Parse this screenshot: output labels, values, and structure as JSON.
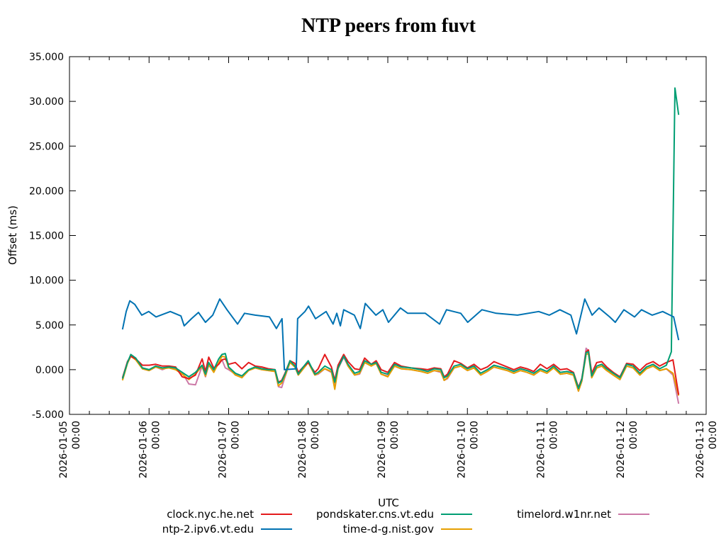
{
  "chart_data": {
    "type": "line",
    "title": "NTP peers from fuvt",
    "xlabel": "UTC",
    "ylabel": "Offset (ms)",
    "ylim": [
      -5,
      35
    ],
    "y_ticks": [
      "-5.000",
      "0.000",
      "5.000",
      "10.000",
      "15.000",
      "20.000",
      "25.000",
      "30.000",
      "35.000"
    ],
    "x_unit": "hours since 2026-01-05 00:00 UTC",
    "xlim_hours": [
      0,
      192
    ],
    "x_ticks": [
      {
        "date": "2026-01-05",
        "time": "00:00"
      },
      {
        "date": "2026-01-06",
        "time": "00:00"
      },
      {
        "date": "2026-01-07",
        "time": "00:00"
      },
      {
        "date": "2026-01-08",
        "time": "00:00"
      },
      {
        "date": "2026-01-09",
        "time": "00:00"
      },
      {
        "date": "2026-01-10",
        "time": "00:00"
      },
      {
        "date": "2026-01-11",
        "time": "00:00"
      },
      {
        "date": "2026-01-12",
        "time": "00:00"
      },
      {
        "date": "2026-01-13",
        "time": "00:00"
      }
    ],
    "grid": false,
    "legend_placement": "bottom",
    "series": [
      {
        "name": "clock.nyc.he.net",
        "color": "#e41a1c",
        "x_hours": [
          16,
          17.5,
          18.5,
          20,
          22,
          24,
          26,
          28,
          30,
          32,
          34,
          36,
          38,
          40,
          41,
          42,
          43.5,
          45,
          46,
          47,
          48,
          50,
          52,
          54,
          56,
          58,
          60,
          62,
          63,
          64,
          65,
          66.5,
          68,
          69,
          70.5,
          72,
          74,
          75,
          77,
          79,
          80,
          81,
          82.7,
          84,
          86,
          87.5,
          89,
          91,
          92.5,
          94,
          96,
          98,
          100,
          103,
          106,
          108,
          110,
          112,
          113,
          114,
          116,
          118,
          120,
          122,
          124,
          126,
          128,
          130,
          132,
          134,
          136,
          138,
          140,
          142,
          144,
          146,
          148,
          150,
          152,
          153.5,
          154.5,
          155.8,
          156.5,
          157.5,
          159,
          160.5,
          162,
          164,
          166,
          168,
          170,
          172,
          174,
          176,
          178,
          180,
          182,
          183.7
        ],
        "values": [
          -0.9,
          0.9,
          1.5,
          1.2,
          0.5,
          0.5,
          0.6,
          0.4,
          0.4,
          0.3,
          -0.8,
          -1.0,
          -0.6,
          1.2,
          -0.2,
          1.4,
          0.2,
          0.6,
          1.1,
          1.2,
          0.6,
          0.8,
          0.1,
          0.8,
          0.4,
          0.3,
          0.1,
          0.0,
          -1.4,
          -1.2,
          -0.4,
          1.0,
          0.7,
          -0.3,
          0.3,
          0.8,
          -0.3,
          0.1,
          1.7,
          0.3,
          -1.2,
          0.5,
          1.7,
          0.9,
          0.1,
          0.0,
          1.3,
          0.6,
          1.0,
          0.0,
          -0.3,
          0.8,
          0.4,
          0.2,
          0.1,
          0.0,
          0.2,
          0.1,
          -0.8,
          -0.5,
          1.0,
          0.7,
          0.2,
          0.6,
          0.0,
          0.3,
          0.9,
          0.6,
          0.3,
          0.0,
          0.3,
          0.1,
          -0.2,
          0.6,
          0.1,
          0.6,
          0.0,
          0.1,
          -0.3,
          -2.0,
          -1.0,
          2.0,
          2.2,
          -0.4,
          0.8,
          0.9,
          0.3,
          -0.3,
          -0.8,
          0.7,
          0.6,
          -0.1,
          0.6,
          0.9,
          0.4,
          0.8,
          1.1,
          -2.8
        ]
      },
      {
        "name": "ntp-2.ipv6.vt.edu",
        "color": "#0072b2",
        "x_hours": [
          16.0,
          17.1,
          18.2,
          19.7,
          21.8,
          23.9,
          26.1,
          30.4,
          33.6,
          34.6,
          36.8,
          38.9,
          41.0,
          43.2,
          45.3,
          47.5,
          50.7,
          52.8,
          56.0,
          60.3,
          62.4,
          64.1,
          64.8,
          68.4,
          68.8,
          71.0,
          72.1,
          74.2,
          77.4,
          79.5,
          80.6,
          81.7,
          82.7,
          85.9,
          87.7,
          89.2,
          92.4,
          94.5,
          96.2,
          99.8,
          102.0,
          107.3,
          111.6,
          113.7,
          118.0,
          120.1,
          124.4,
          128.7,
          135.1,
          141.5,
          144.7,
          147.9,
          151.2,
          152.9,
          155.4,
          157.6,
          159.7,
          162.9,
          164.6,
          167.2,
          170.4,
          172.5,
          175.7,
          178.9,
          181.1,
          182.2,
          183.7
        ],
        "values": [
          4.5,
          6.5,
          7.7,
          7.3,
          6.1,
          6.5,
          5.9,
          6.5,
          6.0,
          4.9,
          5.7,
          6.4,
          5.3,
          6.1,
          7.9,
          6.7,
          5.1,
          6.3,
          6.1,
          5.9,
          4.6,
          5.7,
          0.0,
          0.1,
          5.7,
          6.5,
          7.1,
          5.7,
          6.5,
          5.1,
          6.3,
          4.9,
          6.7,
          6.1,
          4.6,
          7.4,
          6.1,
          6.7,
          5.3,
          6.9,
          6.3,
          6.3,
          5.1,
          6.7,
          6.3,
          5.3,
          6.7,
          6.3,
          6.1,
          6.5,
          6.1,
          6.7,
          6.1,
          4.0,
          7.9,
          6.1,
          6.9,
          5.9,
          5.3,
          6.7,
          5.9,
          6.7,
          6.1,
          6.5,
          6.1,
          5.9,
          3.3
        ]
      },
      {
        "name": "pondskater.cns.vt.edu",
        "color": "#009e73",
        "x_hours": [
          16,
          17.5,
          18.5,
          20,
          22,
          24,
          26,
          28,
          30,
          32,
          34,
          36,
          38,
          40,
          41,
          42,
          43.5,
          45,
          46,
          47,
          48,
          50,
          52,
          54,
          56,
          58,
          60,
          62,
          63,
          64,
          65,
          66.5,
          68,
          69,
          70.5,
          72,
          74,
          75,
          77,
          79,
          80,
          81,
          82.7,
          84,
          86,
          87.5,
          89,
          91,
          92.5,
          94,
          96,
          98,
          100,
          103,
          106,
          108,
          110,
          112,
          113,
          114,
          116,
          118,
          120,
          122,
          124,
          126,
          128,
          130,
          132,
          134,
          136,
          138,
          140,
          142,
          144,
          146,
          148,
          150,
          152,
          153.5,
          154.5,
          155.8,
          156.5,
          157.5,
          159,
          160.5,
          162,
          164,
          166,
          168,
          170,
          172,
          174,
          176,
          178,
          180,
          181.5,
          182.6,
          183.7
        ],
        "values": [
          -1.0,
          0.8,
          1.7,
          1.3,
          0.2,
          0.0,
          0.4,
          0.2,
          0.3,
          0.2,
          -0.3,
          -0.8,
          -0.3,
          0.5,
          -0.5,
          0.8,
          0.0,
          1.2,
          1.7,
          1.8,
          0.3,
          -0.4,
          -0.7,
          0.0,
          0.3,
          0.1,
          0.0,
          0.0,
          -1.5,
          -1.3,
          -0.5,
          1.0,
          0.4,
          -0.5,
          0.3,
          1.0,
          -0.5,
          -0.3,
          0.4,
          0.0,
          -1.4,
          0.2,
          1.5,
          0.6,
          -0.4,
          -0.2,
          1.0,
          0.6,
          0.8,
          -0.3,
          -0.5,
          0.6,
          0.3,
          0.2,
          0.0,
          -0.2,
          0.1,
          0.0,
          -0.9,
          -0.7,
          0.4,
          0.6,
          0.1,
          0.4,
          -0.4,
          0.0,
          0.5,
          0.3,
          0.1,
          -0.2,
          0.1,
          -0.1,
          -0.4,
          0.1,
          -0.2,
          0.4,
          -0.3,
          -0.2,
          -0.4,
          -2.1,
          -1.1,
          1.9,
          2.0,
          -0.7,
          0.4,
          0.6,
          0.1,
          -0.4,
          -0.9,
          0.6,
          0.4,
          -0.4,
          0.3,
          0.6,
          0.1,
          0.5,
          2.0,
          31.5,
          28.5
        ]
      },
      {
        "name": "time-d-g.nist.gov",
        "color": "#e69f00",
        "x_hours": [
          16,
          17.5,
          18.5,
          20,
          22,
          24,
          26,
          28,
          30,
          32,
          34,
          36,
          38,
          40,
          41,
          42,
          43.5,
          45,
          46,
          47,
          48,
          50,
          52,
          54,
          56,
          58,
          60,
          62,
          63,
          64,
          65,
          66.5,
          68,
          69,
          70.5,
          72,
          74,
          75,
          77,
          79,
          80,
          81,
          82.7,
          84,
          86,
          87.5,
          89,
          91,
          92.5,
          94,
          96,
          98,
          100,
          103,
          106,
          108,
          110,
          112,
          113,
          114,
          116,
          118,
          120,
          122,
          124,
          126,
          128,
          130,
          132,
          134,
          136,
          138,
          140,
          142,
          144,
          146,
          148,
          150,
          152,
          153.5,
          154.5,
          155.8,
          156.5,
          157.5,
          159,
          160.5,
          162,
          164,
          166,
          168,
          170,
          172,
          174,
          176,
          178,
          180,
          182,
          183.7
        ],
        "values": [
          -1.2,
          0.7,
          1.5,
          1.1,
          0.1,
          -0.1,
          0.3,
          0.1,
          0.2,
          0.0,
          -0.5,
          -1.1,
          -0.5,
          0.4,
          -0.7,
          0.6,
          -0.3,
          0.8,
          1.5,
          1.4,
          0.2,
          -0.6,
          -0.9,
          -0.1,
          0.2,
          0.0,
          -0.1,
          -0.2,
          -1.8,
          -1.5,
          -0.7,
          0.8,
          0.3,
          -0.6,
          0.1,
          0.8,
          -0.6,
          -0.4,
          0.1,
          -0.2,
          -2.2,
          0.1,
          1.6,
          0.4,
          -0.6,
          -0.4,
          0.8,
          0.4,
          0.7,
          -0.5,
          -0.8,
          0.4,
          0.1,
          0.0,
          -0.2,
          -0.4,
          -0.1,
          -0.2,
          -1.2,
          -0.9,
          0.2,
          0.4,
          -0.1,
          0.2,
          -0.6,
          -0.2,
          0.3,
          0.1,
          -0.1,
          -0.4,
          -0.1,
          -0.3,
          -0.6,
          -0.1,
          -0.4,
          0.2,
          -0.5,
          -0.4,
          -0.6,
          -2.4,
          -1.3,
          1.7,
          1.8,
          -0.9,
          0.2,
          0.4,
          -0.1,
          -0.6,
          -1.1,
          0.4,
          0.2,
          -0.6,
          0.1,
          0.4,
          -0.1,
          0.1,
          -0.4,
          -2.9
        ]
      },
      {
        "name": "timelord.w1nr.net",
        "color": "#cc79a7",
        "x_hours": [
          16,
          17.5,
          18.5,
          20,
          22,
          24,
          26,
          28,
          30,
          32,
          34,
          36,
          38,
          40,
          41,
          42,
          43.5,
          45,
          46,
          47,
          48,
          50,
          52,
          54,
          56,
          58,
          60,
          62,
          63,
          64,
          65,
          66.5,
          68,
          69,
          70.5,
          72,
          74,
          75,
          77,
          79,
          80,
          81,
          82.7,
          84,
          86,
          87.5,
          89,
          91,
          92.5,
          94,
          96,
          98,
          100,
          103,
          106,
          108,
          110,
          112,
          113,
          114,
          116,
          118,
          120,
          122,
          124,
          126,
          128,
          130,
          132,
          134,
          136,
          138,
          140,
          142,
          144,
          146,
          148,
          150,
          152,
          153.5,
          154.5,
          155.8,
          156.5,
          157.5,
          159,
          160.5,
          162,
          164,
          166,
          168,
          170,
          172,
          174,
          176,
          178,
          180,
          182,
          183.7
        ],
        "values": [
          -1.1,
          0.9,
          1.5,
          1.1,
          0.1,
          -0.1,
          0.3,
          0.0,
          0.3,
          0.1,
          -0.3,
          -1.6,
          -1.7,
          0.4,
          -0.8,
          0.5,
          -0.2,
          0.7,
          1.1,
          0.2,
          0.0,
          -0.5,
          -0.9,
          -0.1,
          0.2,
          0.0,
          -0.1,
          -0.2,
          -1.9,
          -2.0,
          -0.8,
          0.8,
          0.3,
          -0.6,
          0.1,
          0.8,
          -0.6,
          -0.5,
          0.1,
          -0.3,
          -1.8,
          0.1,
          1.4,
          0.4,
          -0.6,
          -0.5,
          0.8,
          0.4,
          0.7,
          -0.5,
          -0.7,
          0.4,
          0.1,
          0.0,
          -0.2,
          -0.4,
          -0.1,
          -0.3,
          -1.2,
          -1.0,
          0.2,
          0.4,
          -0.1,
          0.2,
          -0.6,
          -0.2,
          0.3,
          0.1,
          -0.1,
          -0.4,
          -0.1,
          -0.3,
          -0.6,
          -0.1,
          -0.4,
          0.2,
          -0.5,
          -0.4,
          -0.6,
          -2.4,
          -1.3,
          2.4,
          2.1,
          -0.9,
          0.2,
          0.4,
          -0.1,
          -0.6,
          -1.1,
          0.4,
          0.2,
          -0.6,
          0.1,
          0.4,
          -0.1,
          0.1,
          -0.6,
          -3.8
        ]
      }
    ]
  }
}
